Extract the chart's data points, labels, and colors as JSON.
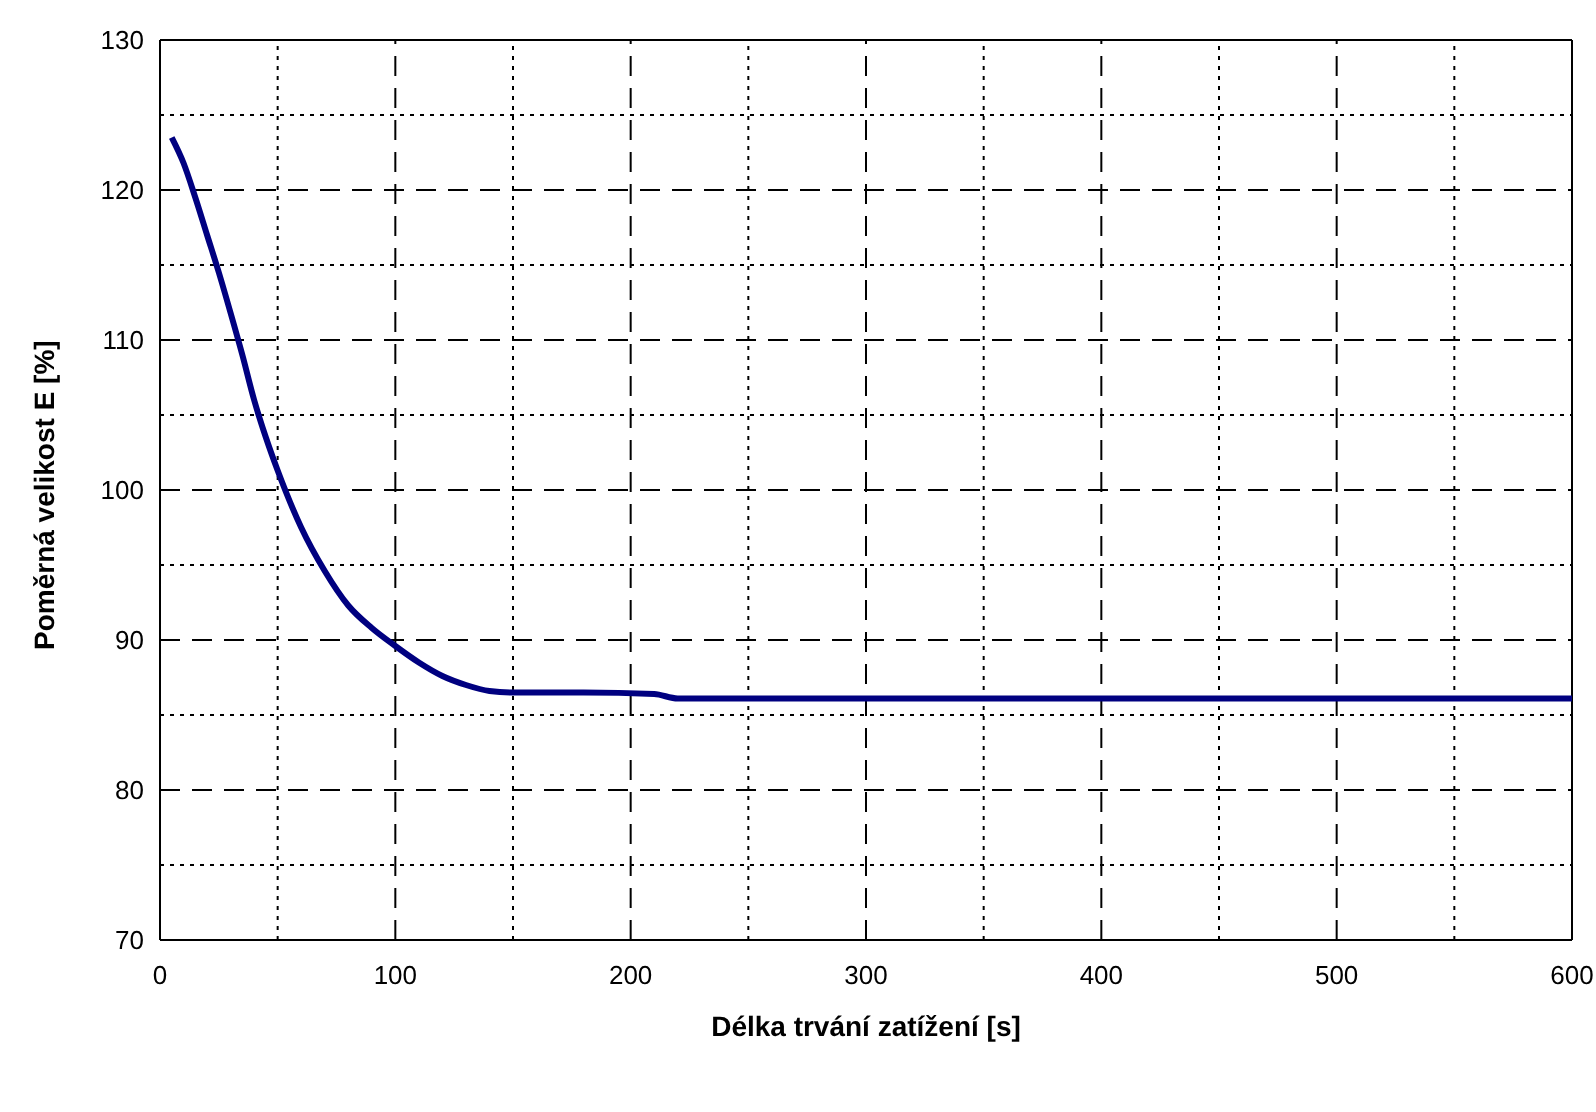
{
  "chart_data": {
    "type": "line",
    "xlabel": "Délka trvání zatížení [s]",
    "ylabel": "Poměrná velikost E [%]",
    "x": [
      5,
      10,
      15,
      20,
      25,
      30,
      35,
      40,
      45,
      50,
      60,
      70,
      80,
      90,
      100,
      110,
      120,
      130,
      140,
      150,
      180,
      210,
      220,
      300,
      400,
      500,
      600
    ],
    "series": [
      {
        "color": "#000080",
        "values": [
          123.5,
          121.8,
          119.5,
          117,
          114.5,
          111.8,
          109,
          106,
          103.5,
          101.3,
          97.5,
          94.6,
          92.3,
          90.8,
          89.6,
          88.5,
          87.6,
          87,
          86.6,
          86.5,
          86.5,
          86.4,
          86.1,
          86.1,
          86.1,
          86.1,
          86.1
        ]
      }
    ],
    "xlim": [
      0,
      600
    ],
    "ylim": [
      70,
      130
    ],
    "xticks": [
      0,
      {
        "value": 50,
        "label": null
      },
      100,
      {
        "value": 150,
        "label": null
      },
      200,
      {
        "value": 250,
        "label": null
      },
      300,
      {
        "value": 350,
        "label": null
      },
      400,
      {
        "value": 450,
        "label": null
      },
      500,
      {
        "value": 550,
        "label": null
      },
      600
    ],
    "yticks": [
      70,
      {
        "value": 75,
        "label": null
      },
      80,
      {
        "value": 85,
        "label": null
      },
      90,
      {
        "value": 95,
        "label": null
      },
      100,
      {
        "value": 105,
        "label": null
      },
      110,
      {
        "value": 115,
        "label": null
      },
      120,
      {
        "value": 125,
        "label": null
      },
      130
    ],
    "grid": true,
    "marker": "none",
    "line_style": "solid",
    "legend": false
  }
}
